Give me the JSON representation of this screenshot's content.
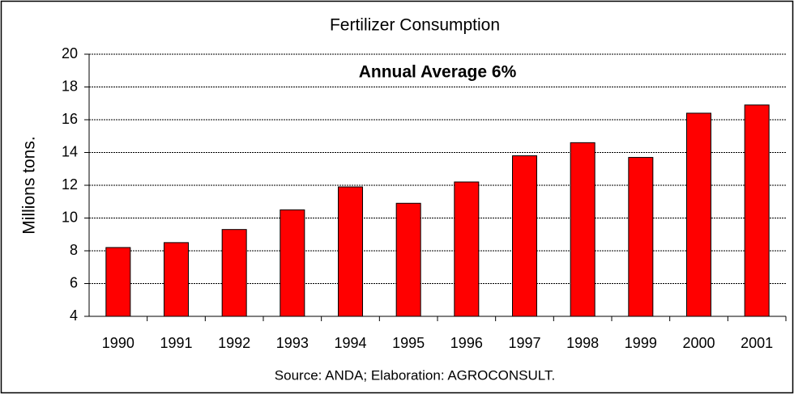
{
  "chart_data": {
    "type": "bar",
    "title": "Fertilizer Consumption",
    "annotation": "Annual Average 6%",
    "y_label": "Millions tons.",
    "source": "Source: ANDA; Elaboration: AGROCONSULT.",
    "categories": [
      "1990",
      "1991",
      "1992",
      "1993",
      "1994",
      "1995",
      "1996",
      "1997",
      "1998",
      "1999",
      "2000",
      "2001"
    ],
    "values": [
      8.2,
      8.5,
      9.3,
      10.5,
      11.9,
      10.9,
      12.2,
      13.8,
      14.6,
      13.7,
      16.4,
      16.9
    ],
    "color": "#ff0000",
    "ylim": [
      4,
      20
    ],
    "yticks": [
      4,
      6,
      8,
      10,
      12,
      14,
      16,
      18,
      20
    ],
    "grid": true
  }
}
